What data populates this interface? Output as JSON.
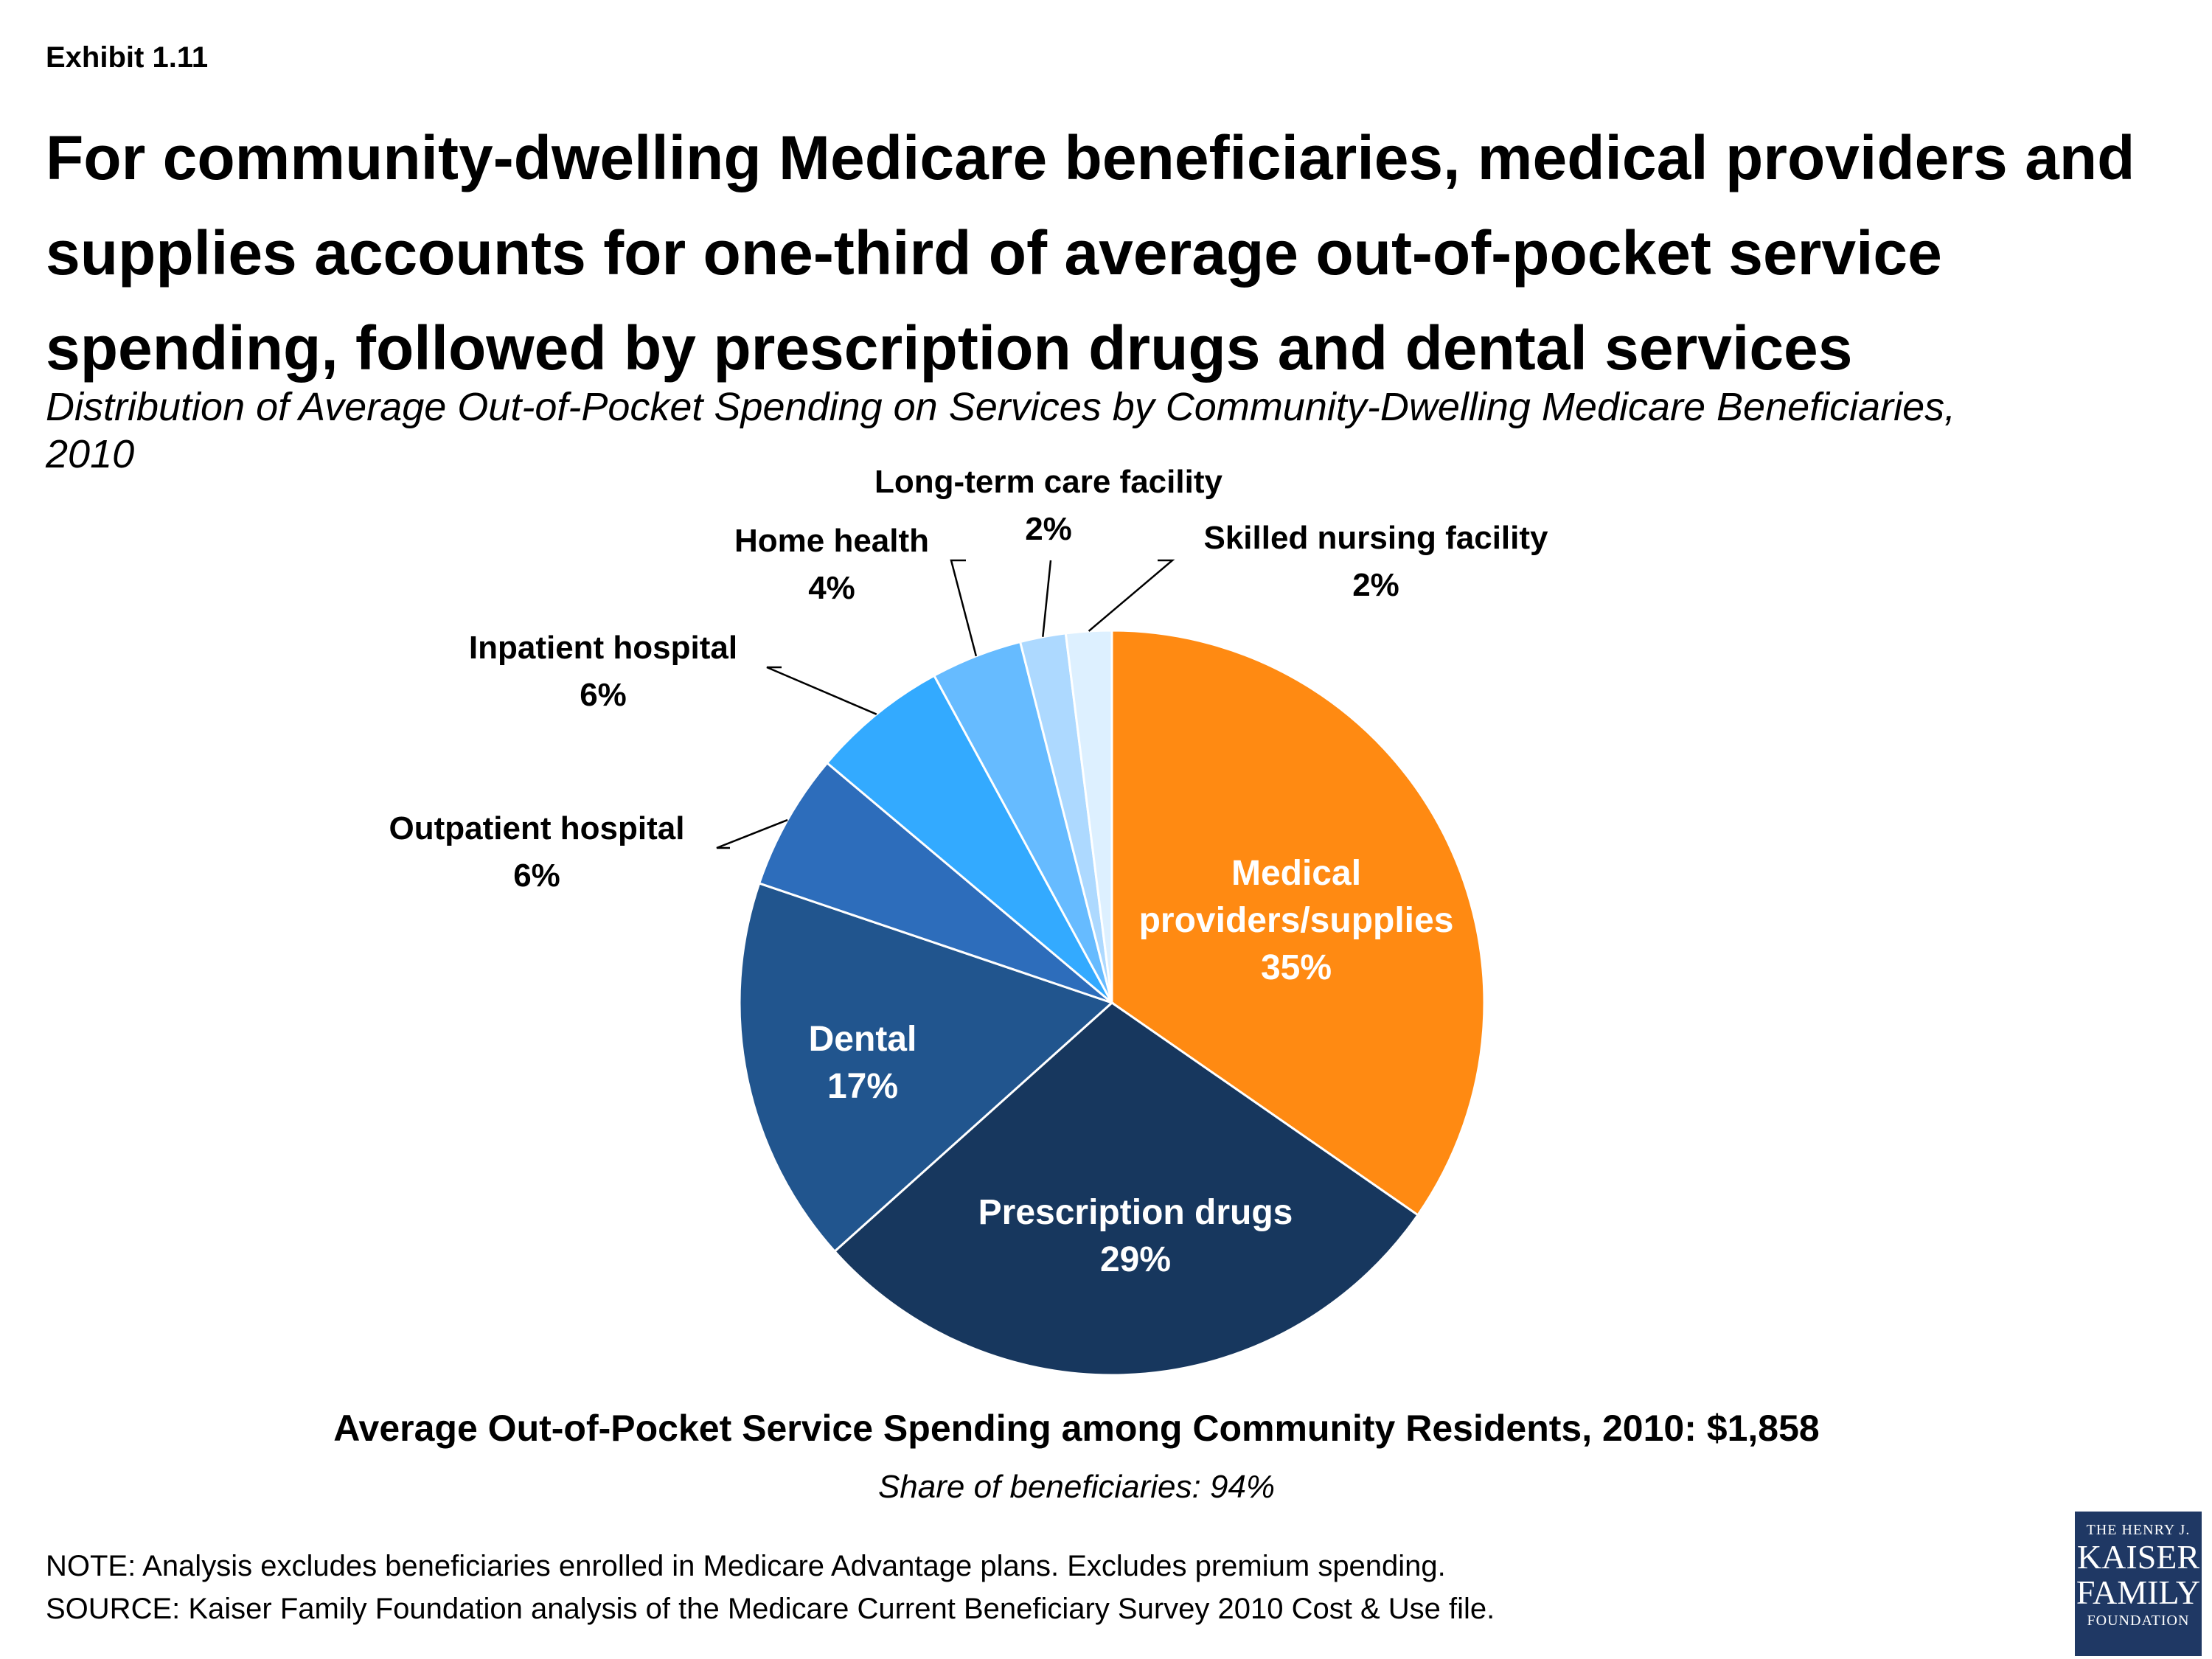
{
  "header": {
    "exhibit": "Exhibit 1.11",
    "title": "For community-dwelling Medicare beneficiaries, medical providers and supplies accounts for one-third of average out-of-pocket service spending, followed by prescription drugs and dental services",
    "subtitle": "Distribution of Average Out-of-Pocket Spending on Services by Community-Dwelling Medicare Beneficiaries, 2010"
  },
  "chart_data": {
    "type": "pie",
    "categories": [
      "Medical providers/supplies",
      "Prescription drugs",
      "Dental",
      "Outpatient hospital",
      "Inpatient hospital",
      "Home health",
      "Long-term care facility",
      "Skilled nursing facility"
    ],
    "values": [
      35,
      29,
      17,
      6,
      6,
      4,
      2,
      2
    ],
    "labels": [
      "35%",
      "29%",
      "17%",
      "6%",
      "6%",
      "4%",
      "2%",
      "2%"
    ],
    "colors": [
      "#ff8a12",
      "#17375e",
      "#21558e",
      "#2d6dbb",
      "#33aaff",
      "#66bbff",
      "#add9ff",
      "#ddf0ff"
    ],
    "label_color_inside": "#ffffff",
    "label_color_outside": "#000000",
    "start": "12 o'clock",
    "direction": "clockwise"
  },
  "footer": {
    "total": "Average Out-of-Pocket Service Spending among Community Residents, 2010: $1,858",
    "share": "Share of beneficiaries: 94%",
    "note": "NOTE: Analysis excludes beneficiaries enrolled in Medicare Advantage plans.  Excludes premium spending.",
    "source": "SOURCE: Kaiser Family Foundation analysis of the Medicare Current Beneficiary Survey 2010 Cost & Use file."
  },
  "logo": {
    "line1": "THE HENRY J.",
    "line2": "KAISER",
    "line3": "FAMILY",
    "line4": "FOUNDATION"
  }
}
